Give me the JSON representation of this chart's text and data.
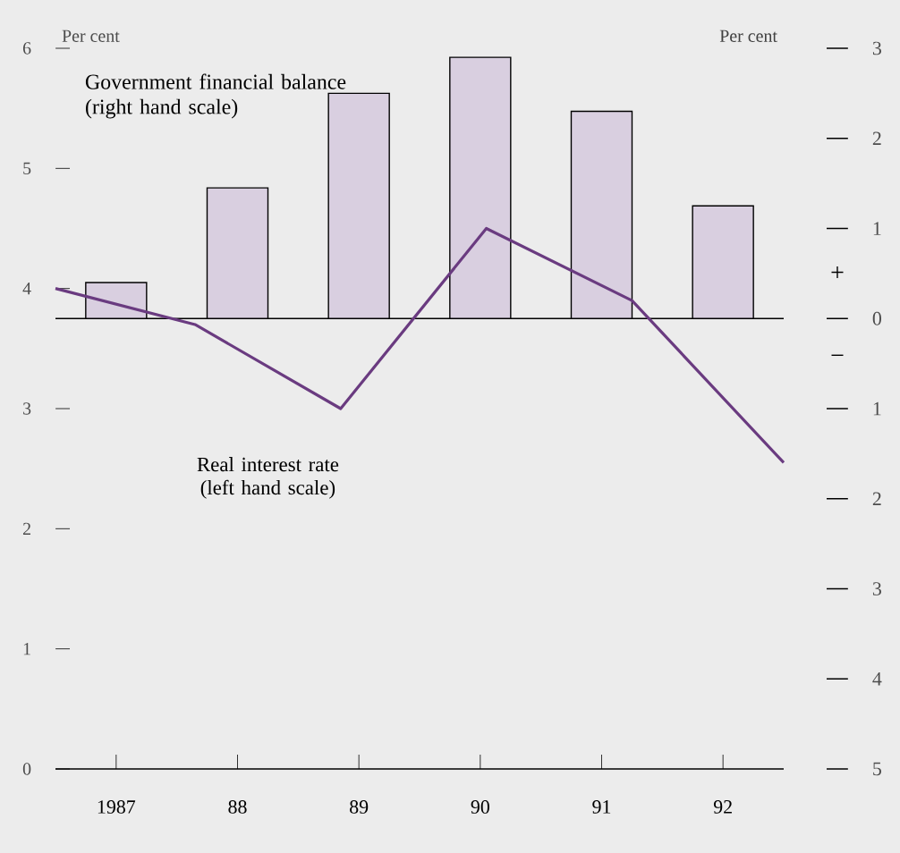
{
  "chart_data": {
    "type": "bar",
    "x": [
      1987,
      1988,
      1989,
      1990,
      1991,
      1992
    ],
    "xlim": [
      1986.5,
      1992.5
    ],
    "xticks": [
      {
        "value": 1987,
        "label": "1987"
      },
      {
        "value": 1988,
        "label": "88"
      },
      {
        "value": 1989,
        "label": "89"
      },
      {
        "value": 1990,
        "label": "90"
      },
      {
        "value": 1991,
        "label": "91"
      },
      {
        "value": 1992,
        "label": "92"
      }
    ],
    "ylim": [
      0,
      6
    ],
    "yticks": [
      0,
      1,
      2,
      3,
      4,
      5,
      6
    ],
    "y2lim": [
      -5,
      3
    ],
    "y2ticks": [
      {
        "value": 3,
        "label": "3"
      },
      {
        "value": 2,
        "label": "2"
      },
      {
        "value": 1,
        "label": "1"
      },
      {
        "value": 0,
        "label": "0"
      },
      {
        "value": -1,
        "label": "1"
      },
      {
        "value": -2,
        "label": "2"
      },
      {
        "value": -3,
        "label": "3"
      },
      {
        "value": -4,
        "label": "4"
      },
      {
        "value": -5,
        "label": "5"
      }
    ],
    "ylabel": "Per cent",
    "y2label": "Per cent",
    "series": [
      {
        "name": "Government financial balance (right hand scale)",
        "axis": "y2",
        "color": "#d9cfe0",
        "values": [
          0.4,
          1.45,
          2.5,
          2.9,
          2.3,
          1.25
        ]
      },
      {
        "name": "Real interest rate (left hand scale)",
        "type": "line",
        "axis": "y",
        "color": "#6a3b80",
        "x": [
          1986.5,
          1987.65,
          1988.85,
          1990.05,
          1991.25,
          1992.5
        ],
        "values": [
          4.0,
          3.7,
          3.0,
          4.5,
          3.9,
          2.55
        ]
      }
    ],
    "ref_lines": [
      {
        "axis": "y2",
        "value": 0
      }
    ],
    "annotations": [
      "+",
      "−"
    ],
    "grid": false,
    "legend": "top left",
    "marker": "none",
    "line_style": "solid"
  }
}
